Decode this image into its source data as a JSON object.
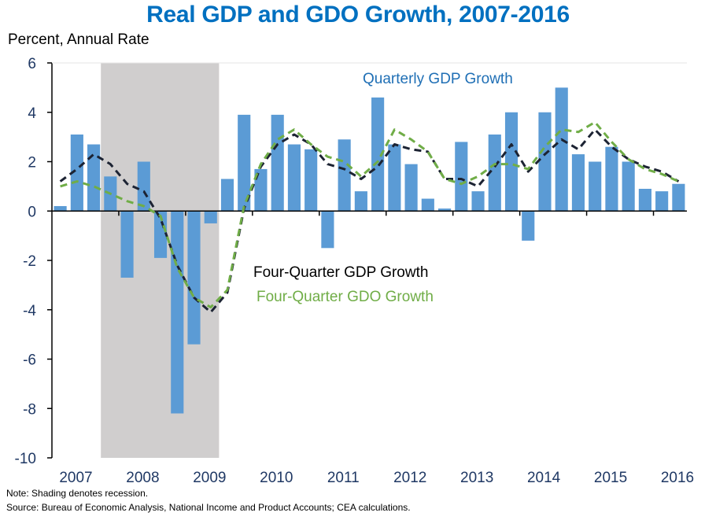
{
  "chart_data": {
    "type": "bar",
    "title": "Real GDP and GDO Growth, 2007-2016",
    "ylabel": "Percent, Annual Rate",
    "xlabel": "",
    "ylim": [
      -10,
      6
    ],
    "yticks": [
      6,
      4,
      2,
      0,
      -2,
      -4,
      -6,
      -8,
      -10
    ],
    "grid": false,
    "x_start": "2007Q1",
    "x_end": "2016Q2",
    "xtick_labels": [
      "2007",
      "2008",
      "2009",
      "2010",
      "2011",
      "2012",
      "2013",
      "2014",
      "2015",
      "2016"
    ],
    "categories": [
      "2007Q1",
      "2007Q2",
      "2007Q3",
      "2007Q4",
      "2008Q1",
      "2008Q2",
      "2008Q3",
      "2008Q4",
      "2009Q1",
      "2009Q2",
      "2009Q3",
      "2009Q4",
      "2010Q1",
      "2010Q2",
      "2010Q3",
      "2010Q4",
      "2011Q1",
      "2011Q2",
      "2011Q3",
      "2011Q4",
      "2012Q1",
      "2012Q2",
      "2012Q3",
      "2012Q4",
      "2013Q1",
      "2013Q2",
      "2013Q3",
      "2013Q4",
      "2014Q1",
      "2014Q2",
      "2014Q3",
      "2014Q4",
      "2015Q1",
      "2015Q2",
      "2015Q3",
      "2015Q4",
      "2016Q1",
      "2016Q2"
    ],
    "recession_shading": {
      "start": "2007Q4",
      "end": "2009Q2",
      "label": "Shading denotes recession."
    },
    "series": [
      {
        "name": "Quarterly GDP Growth",
        "kind": "bar",
        "color": "#5b9bd5",
        "values": [
          0.2,
          3.1,
          2.7,
          1.4,
          -2.7,
          2.0,
          -1.9,
          -8.2,
          -5.4,
          -0.5,
          1.3,
          3.9,
          1.7,
          3.9,
          2.7,
          2.5,
          -1.5,
          2.9,
          0.8,
          4.6,
          2.7,
          1.9,
          0.5,
          0.1,
          2.8,
          0.8,
          3.1,
          4.0,
          -1.2,
          4.0,
          5.0,
          2.3,
          2.0,
          2.6,
          2.0,
          0.9,
          0.8,
          1.1
        ]
      },
      {
        "name": "Four-Quarter GDP Growth",
        "kind": "line",
        "style": "dashed",
        "color": "#1c2333",
        "values": [
          1.2,
          1.7,
          2.3,
          1.9,
          1.1,
          0.8,
          -0.3,
          -2.2,
          -3.5,
          -4.1,
          -3.3,
          0.1,
          1.8,
          2.7,
          3.1,
          2.7,
          1.9,
          1.7,
          1.3,
          1.8,
          2.7,
          2.5,
          2.4,
          1.3,
          1.3,
          1.0,
          1.8,
          2.7,
          1.6,
          2.3,
          2.9,
          2.5,
          3.3,
          2.6,
          2.1,
          1.8,
          1.6,
          1.2
        ]
      },
      {
        "name": "Four-Quarter GDO Growth",
        "kind": "line",
        "style": "dashed",
        "color": "#70ad47",
        "values": [
          1.0,
          1.2,
          1.0,
          0.7,
          0.4,
          0.2,
          -0.2,
          -2.3,
          -3.5,
          -3.9,
          -3.2,
          0.2,
          1.9,
          2.9,
          3.3,
          2.7,
          2.2,
          2.0,
          1.4,
          2.0,
          3.3,
          2.9,
          2.4,
          1.3,
          1.1,
          1.4,
          1.9,
          1.9,
          1.7,
          2.6,
          3.3,
          3.2,
          3.6,
          2.8,
          2.1,
          1.7,
          1.5,
          1.2
        ]
      }
    ],
    "annotations": {
      "bars": "Quarterly GDP Growth",
      "gdp_line": "Four-Quarter GDP Growth",
      "gdo_line": "Four-Quarter GDO Growth"
    },
    "notes": [
      "Note: Shading denotes recession.",
      "Source: Bureau of Economic Analysis, National Income and Product Accounts; CEA calculations."
    ]
  }
}
